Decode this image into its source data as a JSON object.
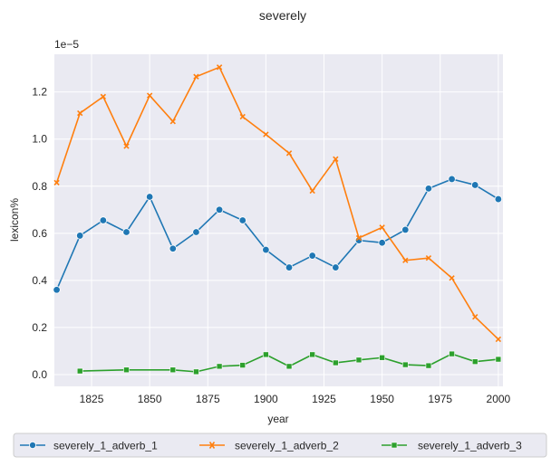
{
  "chart_data": {
    "type": "line",
    "title": "severely",
    "xlabel": "year",
    "ylabel": "lexicon%",
    "y_offset_label": "1e−5",
    "xlim": [
      1809,
      2002
    ],
    "ylim": [
      -0.05,
      1.36
    ],
    "x_ticks": [
      1825,
      1850,
      1875,
      1900,
      1925,
      1950,
      1975,
      2000
    ],
    "y_ticks": [
      0.0,
      0.2,
      0.4,
      0.6,
      0.8,
      1.0,
      1.2
    ],
    "y_tick_labels": [
      "0.0",
      "0.2",
      "0.4",
      "0.6",
      "0.8",
      "1.0",
      "1.2"
    ],
    "x_tick_labels": [
      "1825",
      "1850",
      "1875",
      "1900",
      "1925",
      "1950",
      "1975",
      "2000"
    ],
    "grid": true,
    "legend_placement": "bottom",
    "series": [
      {
        "name": "severely_1_adverb_1",
        "color": "#1f77b4",
        "marker": "circle",
        "x": [
          1810,
          1820,
          1830,
          1840,
          1850,
          1860,
          1870,
          1880,
          1890,
          1900,
          1910,
          1920,
          1930,
          1940,
          1950,
          1960,
          1970,
          1980,
          1990,
          2000
        ],
        "values": [
          0.36,
          0.59,
          0.655,
          0.605,
          0.755,
          0.535,
          0.605,
          0.7,
          0.655,
          0.53,
          0.455,
          0.505,
          0.455,
          0.57,
          0.56,
          0.615,
          0.79,
          0.83,
          0.805,
          0.745
        ]
      },
      {
        "name": "severely_1_adverb_2",
        "color": "#ff7f0e",
        "marker": "x",
        "x": [
          1810,
          1820,
          1830,
          1840,
          1850,
          1860,
          1870,
          1880,
          1890,
          1900,
          1910,
          1920,
          1930,
          1940,
          1950,
          1960,
          1970,
          1980,
          1990,
          2000
        ],
        "values": [
          0.815,
          1.11,
          1.18,
          0.97,
          1.185,
          1.075,
          1.265,
          1.305,
          1.095,
          1.02,
          0.94,
          0.78,
          0.915,
          0.58,
          0.625,
          0.485,
          0.495,
          0.41,
          0.245,
          0.15
        ]
      },
      {
        "name": "severely_1_adverb_3",
        "color": "#2ca02c",
        "marker": "square",
        "x": [
          1820,
          1840,
          1860,
          1870,
          1880,
          1890,
          1900,
          1910,
          1920,
          1930,
          1940,
          1950,
          1960,
          1970,
          1980,
          1990,
          2000
        ],
        "values": [
          0.015,
          0.02,
          0.02,
          0.012,
          0.035,
          0.04,
          0.085,
          0.035,
          0.085,
          0.05,
          0.062,
          0.072,
          0.042,
          0.038,
          0.088,
          0.055,
          0.065
        ]
      }
    ]
  }
}
